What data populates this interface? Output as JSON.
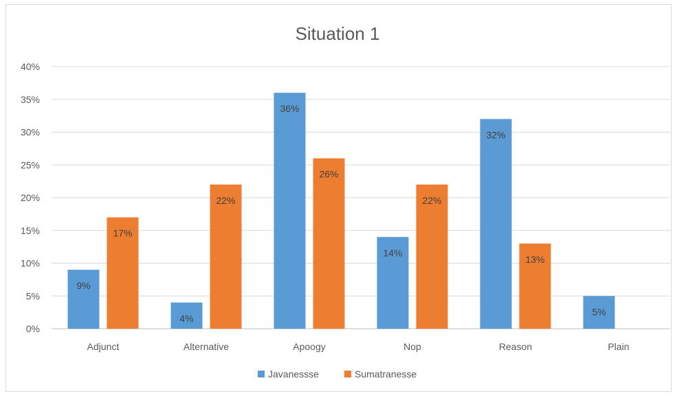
{
  "chart_data": {
    "type": "bar",
    "title": "Situation  1",
    "categories": [
      "Adjunct",
      "Alternative",
      "Apoogy",
      "Nop",
      "Reason",
      "Plain"
    ],
    "series": [
      {
        "name": "Javanessse",
        "color": "#5b9bd5",
        "values": [
          9,
          4,
          36,
          14,
          32,
          5
        ],
        "labels": [
          "9%",
          "4%",
          "36%",
          "14%",
          "32%",
          "5%"
        ]
      },
      {
        "name": "Sumatranesse",
        "color": "#ed7d31",
        "values": [
          17,
          22,
          26,
          22,
          13,
          0
        ],
        "labels": [
          "17%",
          "22%",
          "26%",
          "22%",
          "13%",
          ""
        ]
      }
    ],
    "ylim": [
      0,
      40
    ],
    "y_ticks": [
      0,
      5,
      10,
      15,
      20,
      25,
      30,
      35,
      40
    ],
    "y_tick_labels": [
      "0%",
      "5%",
      "10%",
      "15%",
      "20%",
      "25%",
      "30%",
      "35%",
      "40%"
    ],
    "grid": true,
    "legend_position": "bottom"
  }
}
